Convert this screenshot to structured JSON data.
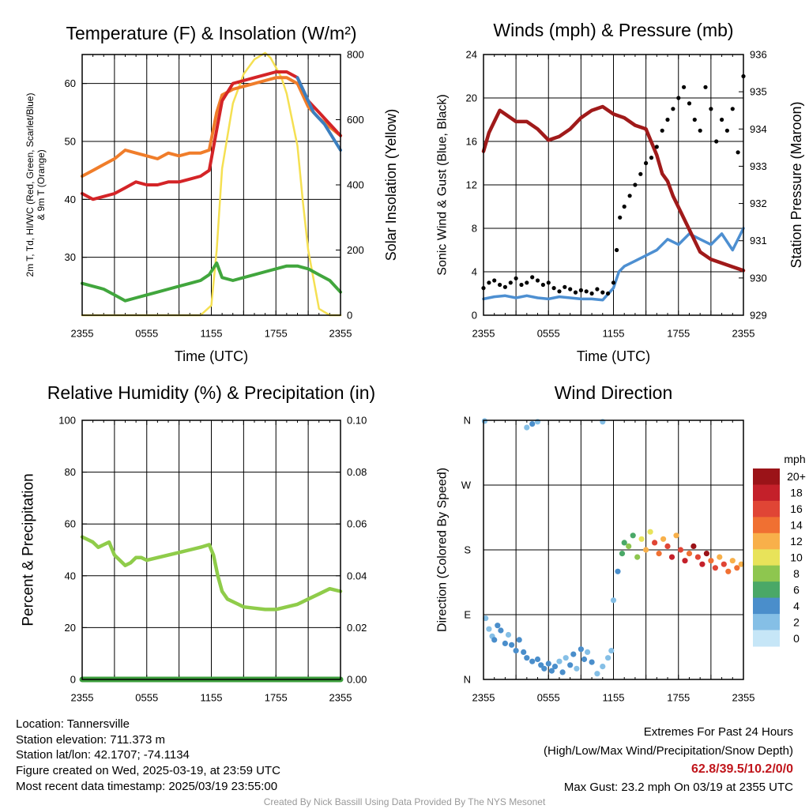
{
  "chart_data": [
    {
      "id": "temp",
      "type": "line",
      "title": "Temperature (F) & Insolation (W/m²)",
      "xlabel": "Time (UTC)",
      "ylabel_lines": [
        "2m T, Td, HI/WC (Red, Green, Scarlet/Blue)",
        "& 9m T (Orange)"
      ],
      "ylabel2": "Solar Insolation (Yellow)",
      "xticks": [
        "2355",
        "0555",
        "1155",
        "1755",
        "2355"
      ],
      "x_range_hours": [
        0,
        24
      ],
      "ylim": [
        20,
        65
      ],
      "yticks": [
        30,
        40,
        50,
        60
      ],
      "ylim2": [
        0,
        800
      ],
      "yticks2": [
        0,
        200,
        400,
        600,
        800
      ],
      "grid": true,
      "series": [
        {
          "key": "t9m",
          "color": "#f07d2a",
          "axis": "left",
          "x": [
            0,
            1,
            2,
            3,
            4,
            5,
            6,
            7,
            8,
            9,
            10,
            11,
            11.8,
            12.5,
            13,
            14,
            15,
            16,
            17,
            18,
            19,
            20,
            21,
            22,
            23,
            24
          ],
          "y": [
            44,
            45,
            46,
            47,
            48.5,
            48,
            47.5,
            47,
            48,
            47.5,
            48,
            48,
            48.5,
            55,
            58,
            59,
            59.5,
            60,
            60.5,
            61,
            61,
            60,
            56,
            54,
            52.5,
            51
          ]
        },
        {
          "key": "t2m",
          "color": "#d42427",
          "axis": "left",
          "x": [
            0,
            1,
            2,
            3,
            4,
            5,
            6,
            7,
            8,
            9,
            10,
            11,
            11.8,
            12.5,
            13,
            14,
            15,
            16,
            17,
            18,
            19,
            20,
            21,
            22,
            23,
            24
          ],
          "y": [
            41,
            40,
            40.5,
            41,
            42,
            43,
            42.5,
            42.5,
            43,
            43,
            43.5,
            44,
            45,
            52,
            57,
            60,
            60.5,
            61,
            61.5,
            62,
            62,
            61,
            57,
            55,
            53,
            51
          ]
        },
        {
          "key": "wc",
          "color": "#3b7fbf",
          "axis": "left",
          "x": [
            20,
            20.5,
            21,
            21.5,
            22,
            22.5,
            23,
            23.5,
            24
          ],
          "y": [
            61,
            59,
            57,
            55,
            54,
            53,
            51.5,
            50,
            48.5
          ]
        },
        {
          "key": "td",
          "color": "#41a63d",
          "axis": "left",
          "x": [
            0,
            1,
            2,
            3,
            4,
            5,
            6,
            7,
            8,
            9,
            10,
            11,
            11.8,
            12.5,
            13,
            14,
            15,
            16,
            17,
            18,
            19,
            20,
            21,
            22,
            23,
            24
          ],
          "y": [
            25.5,
            25,
            24.5,
            23.5,
            22.5,
            23,
            23.5,
            24,
            24.5,
            25,
            25.5,
            26,
            27,
            29,
            26.5,
            26,
            26.5,
            27,
            27.5,
            28,
            28.5,
            28.5,
            28,
            27,
            26,
            24
          ]
        },
        {
          "key": "sol",
          "color": "#f5e052",
          "axis": "right",
          "x": [
            0,
            11,
            12,
            12.5,
            13,
            14,
            15,
            16,
            17,
            17.5,
            18,
            18.5,
            19,
            20,
            20.5,
            21,
            22,
            23,
            24
          ],
          "y": [
            0,
            0,
            30,
            200,
            450,
            650,
            740,
            785,
            805,
            790,
            760,
            730,
            680,
            520,
            350,
            200,
            20,
            0,
            0
          ]
        }
      ]
    },
    {
      "id": "wind",
      "type": "line",
      "title": "Winds (mph) & Pressure (mb)",
      "xlabel": "Time (UTC)",
      "ylabel": "Sonic Wind & Gust (Blue, Black)",
      "ylabel2": "Station Pressure (Maroon)",
      "xticks": [
        "2355",
        "0555",
        "1155",
        "1755",
        "2355"
      ],
      "x_range_hours": [
        0,
        24
      ],
      "ylim": [
        0,
        24
      ],
      "yticks": [
        0,
        4,
        8,
        12,
        16,
        20,
        24
      ],
      "ylim2": [
        929,
        936
      ],
      "yticks2": [
        929,
        930,
        931,
        932,
        933,
        934,
        935,
        936
      ],
      "grid": true,
      "series": [
        {
          "key": "wspd",
          "color": "#4d8fd1",
          "axis": "left",
          "x": [
            0,
            1,
            2,
            3,
            4,
            5,
            6,
            7,
            8,
            9,
            10,
            11,
            12,
            12.5,
            13,
            14,
            15,
            16,
            17,
            18,
            19,
            20,
            21,
            22,
            23,
            24
          ],
          "y": [
            1.5,
            1.7,
            1.8,
            1.6,
            1.8,
            1.6,
            1.5,
            1.7,
            1.6,
            1.5,
            1.5,
            1.4,
            2.5,
            4,
            4.5,
            5,
            5.5,
            6,
            7,
            6.5,
            7.5,
            7,
            6.5,
            7.5,
            6,
            8
          ]
        },
        {
          "key": "gust",
          "color": "#000000",
          "axis": "left",
          "x": [
            0,
            0.5,
            1,
            1.5,
            2,
            2.5,
            3,
            3.5,
            4,
            4.5,
            5,
            5.5,
            6,
            6.5,
            7,
            7.5,
            8,
            8.5,
            9,
            9.5,
            10,
            10.5,
            11,
            11.5,
            12,
            12.3,
            12.6,
            13,
            13.5,
            14,
            14.5,
            15,
            15.5,
            16,
            16.5,
            17,
            17.5,
            18,
            18.5,
            19,
            19.5,
            20,
            20.5,
            21,
            21.5,
            22,
            22.5,
            23,
            23.5,
            24
          ],
          "y": [
            2.5,
            3,
            3.2,
            2.8,
            2.6,
            3,
            3.4,
            2.8,
            3,
            3.5,
            3.2,
            2.8,
            3,
            2.5,
            2.2,
            2.6,
            2.4,
            2.1,
            2.3,
            2.2,
            2.0,
            2.4,
            2.1,
            2.0,
            3,
            6,
            9,
            10,
            11,
            12,
            13,
            14,
            14.5,
            15.5,
            17,
            18,
            19,
            20,
            21,
            19.5,
            18,
            17,
            21,
            19,
            16,
            18,
            17,
            19,
            15,
            22
          ]
        },
        {
          "key": "pres",
          "color": "#a01a1a",
          "axis": "right",
          "x": [
            0,
            0.5,
            1,
            1.5,
            2,
            3,
            4,
            5,
            6,
            7,
            8,
            9,
            10,
            11,
            12,
            13,
            14,
            15,
            16,
            16.5,
            17,
            17.5,
            18,
            18.5,
            19,
            19.5,
            20,
            21,
            22,
            23,
            24
          ],
          "y": [
            933.4,
            933.9,
            934.2,
            934.5,
            934.4,
            934.2,
            934.2,
            934.0,
            933.7,
            933.8,
            934.0,
            934.3,
            934.5,
            934.6,
            934.4,
            934.3,
            934.1,
            934.0,
            933.3,
            932.8,
            932.6,
            932.2,
            931.9,
            931.6,
            931.3,
            931.0,
            930.7,
            930.5,
            930.4,
            930.3,
            930.2
          ]
        }
      ]
    },
    {
      "id": "rh",
      "type": "line",
      "title": "Relative Humidity (%) & Precipitation (in)",
      "ylabel": "Percent & Precipitation",
      "xticks": [
        "2355",
        "0555",
        "1155",
        "1755",
        "2355"
      ],
      "x_range_hours": [
        0,
        24
      ],
      "ylim": [
        0,
        100
      ],
      "yticks": [
        0,
        20,
        40,
        60,
        80,
        100
      ],
      "ylim2": [
        0,
        0.1
      ],
      "yticks2": [
        "0.00",
        "0.02",
        "0.04",
        "0.06",
        "0.08",
        "0.10"
      ],
      "grid": true,
      "series": [
        {
          "key": "rh",
          "color": "#8fcc4a",
          "axis": "left",
          "x": [
            0,
            0.5,
            1,
            1.5,
            2,
            2.5,
            3,
            3.5,
            4,
            4.5,
            5,
            5.5,
            6,
            7,
            8,
            9,
            10,
            11,
            11.8,
            12.2,
            12.6,
            13,
            13.5,
            14,
            14.5,
            15,
            16,
            17,
            18,
            19,
            20,
            21,
            22,
            23,
            24
          ],
          "y": [
            55,
            54,
            53,
            51,
            52,
            53,
            48,
            46,
            44,
            45,
            47,
            47,
            46,
            47,
            48,
            49,
            50,
            51,
            52,
            48,
            40,
            34,
            31,
            30,
            29,
            28,
            27.5,
            27,
            27,
            28,
            29,
            31,
            33,
            35,
            34
          ]
        },
        {
          "key": "precip",
          "color": "#3c9e3c",
          "axis": "right",
          "x": [
            0,
            24
          ],
          "y": [
            0,
            0
          ]
        }
      ]
    },
    {
      "id": "wdir",
      "type": "scatter",
      "title": "Wind Direction",
      "ylabel": "Direction (Colored By Speed)",
      "xticks": [
        "2355",
        "0555",
        "1155",
        "1755",
        "2355"
      ],
      "x_range_hours": [
        0,
        24
      ],
      "ylim": [
        0,
        360
      ],
      "yticks": [
        "N",
        "E",
        "S",
        "W",
        "N"
      ],
      "grid": true,
      "legend_title": "mph",
      "legend_labels": [
        "0",
        "2",
        "4",
        "6",
        "8",
        "10",
        "12",
        "14",
        "16",
        "18",
        "20+"
      ],
      "legend_colors": [
        "#c6e6f7",
        "#85bfe6",
        "#4a8ecb",
        "#4aa867",
        "#8ec64f",
        "#e8e35a",
        "#f8b04a",
        "#f07032",
        "#e04535",
        "#c4202a",
        "#9b1318"
      ],
      "points": [
        [
          0.2,
          85,
          1
        ],
        [
          0.5,
          70,
          1
        ],
        [
          0.8,
          60,
          1
        ],
        [
          1.0,
          55,
          2
        ],
        [
          1.3,
          75,
          2
        ],
        [
          1.6,
          68,
          2
        ],
        [
          2.0,
          50,
          2
        ],
        [
          2.3,
          62,
          1
        ],
        [
          2.6,
          48,
          2
        ],
        [
          3.0,
          40,
          2
        ],
        [
          3.3,
          55,
          2
        ],
        [
          3.7,
          38,
          2
        ],
        [
          4.0,
          30,
          2
        ],
        [
          4.5,
          25,
          2
        ],
        [
          5.0,
          28,
          2
        ],
        [
          5.3,
          20,
          2
        ],
        [
          5.6,
          15,
          2
        ],
        [
          6.0,
          22,
          2
        ],
        [
          6.3,
          12,
          2
        ],
        [
          6.6,
          18,
          2
        ],
        [
          7.0,
          25,
          1
        ],
        [
          7.3,
          10,
          2
        ],
        [
          7.6,
          30,
          1
        ],
        [
          8.0,
          20,
          2
        ],
        [
          8.3,
          35,
          2
        ],
        [
          8.6,
          15,
          1
        ],
        [
          9.0,
          42,
          2
        ],
        [
          9.3,
          28,
          2
        ],
        [
          9.6,
          38,
          1
        ],
        [
          10.0,
          24,
          2
        ],
        [
          10.5,
          8,
          1
        ],
        [
          11.0,
          18,
          1
        ],
        [
          11.5,
          30,
          1
        ],
        [
          11.8,
          40,
          1
        ],
        [
          4.0,
          350,
          1
        ],
        [
          4.5,
          355,
          2
        ],
        [
          5.0,
          358,
          1
        ],
        [
          11.0,
          358,
          1
        ],
        [
          0.1,
          359,
          1
        ],
        [
          12.0,
          110,
          1
        ],
        [
          12.4,
          150,
          2
        ],
        [
          12.8,
          175,
          3
        ],
        [
          13.0,
          190,
          3
        ],
        [
          13.4,
          185,
          4
        ],
        [
          13.8,
          200,
          3
        ],
        [
          14.2,
          170,
          4
        ],
        [
          14.6,
          195,
          5
        ],
        [
          15.0,
          180,
          6
        ],
        [
          15.4,
          205,
          5
        ],
        [
          15.8,
          190,
          8
        ],
        [
          16.2,
          175,
          7
        ],
        [
          16.6,
          195,
          6
        ],
        [
          17.0,
          185,
          8
        ],
        [
          17.4,
          170,
          9
        ],
        [
          17.8,
          200,
          6
        ],
        [
          18.2,
          180,
          8
        ],
        [
          18.6,
          165,
          9
        ],
        [
          19.0,
          175,
          7
        ],
        [
          19.4,
          185,
          10
        ],
        [
          19.8,
          170,
          8
        ],
        [
          20.2,
          160,
          9
        ],
        [
          20.6,
          175,
          10
        ],
        [
          21.0,
          165,
          7
        ],
        [
          21.4,
          155,
          8
        ],
        [
          21.8,
          170,
          6
        ],
        [
          22.2,
          160,
          8
        ],
        [
          22.6,
          150,
          7
        ],
        [
          23.0,
          165,
          6
        ],
        [
          23.4,
          155,
          7
        ],
        [
          23.8,
          160,
          6
        ]
      ]
    }
  ],
  "info": {
    "location": "Location: Tannersville",
    "elevation": "Station elevation: 711.373 m",
    "latlon": "Station lat/lon: 42.1707; -74.1134",
    "created": "Figure created on Wed, 2025-03-19, at 23:59 UTC",
    "recent": "Most recent data timestamp: 2025/03/19 23:55:00"
  },
  "extremes": {
    "title": "Extremes For Past 24 Hours",
    "subtitle": "(High/Low/Max Wind/Precipitation/Snow Depth)",
    "values": "62.8/39.5/10.2/0/0",
    "gust": "Max Gust: 23.2 mph On 03/19 at 2355 UTC"
  },
  "credit": "Created By Nick Bassill Using Data Provided By The NYS Mesonet"
}
